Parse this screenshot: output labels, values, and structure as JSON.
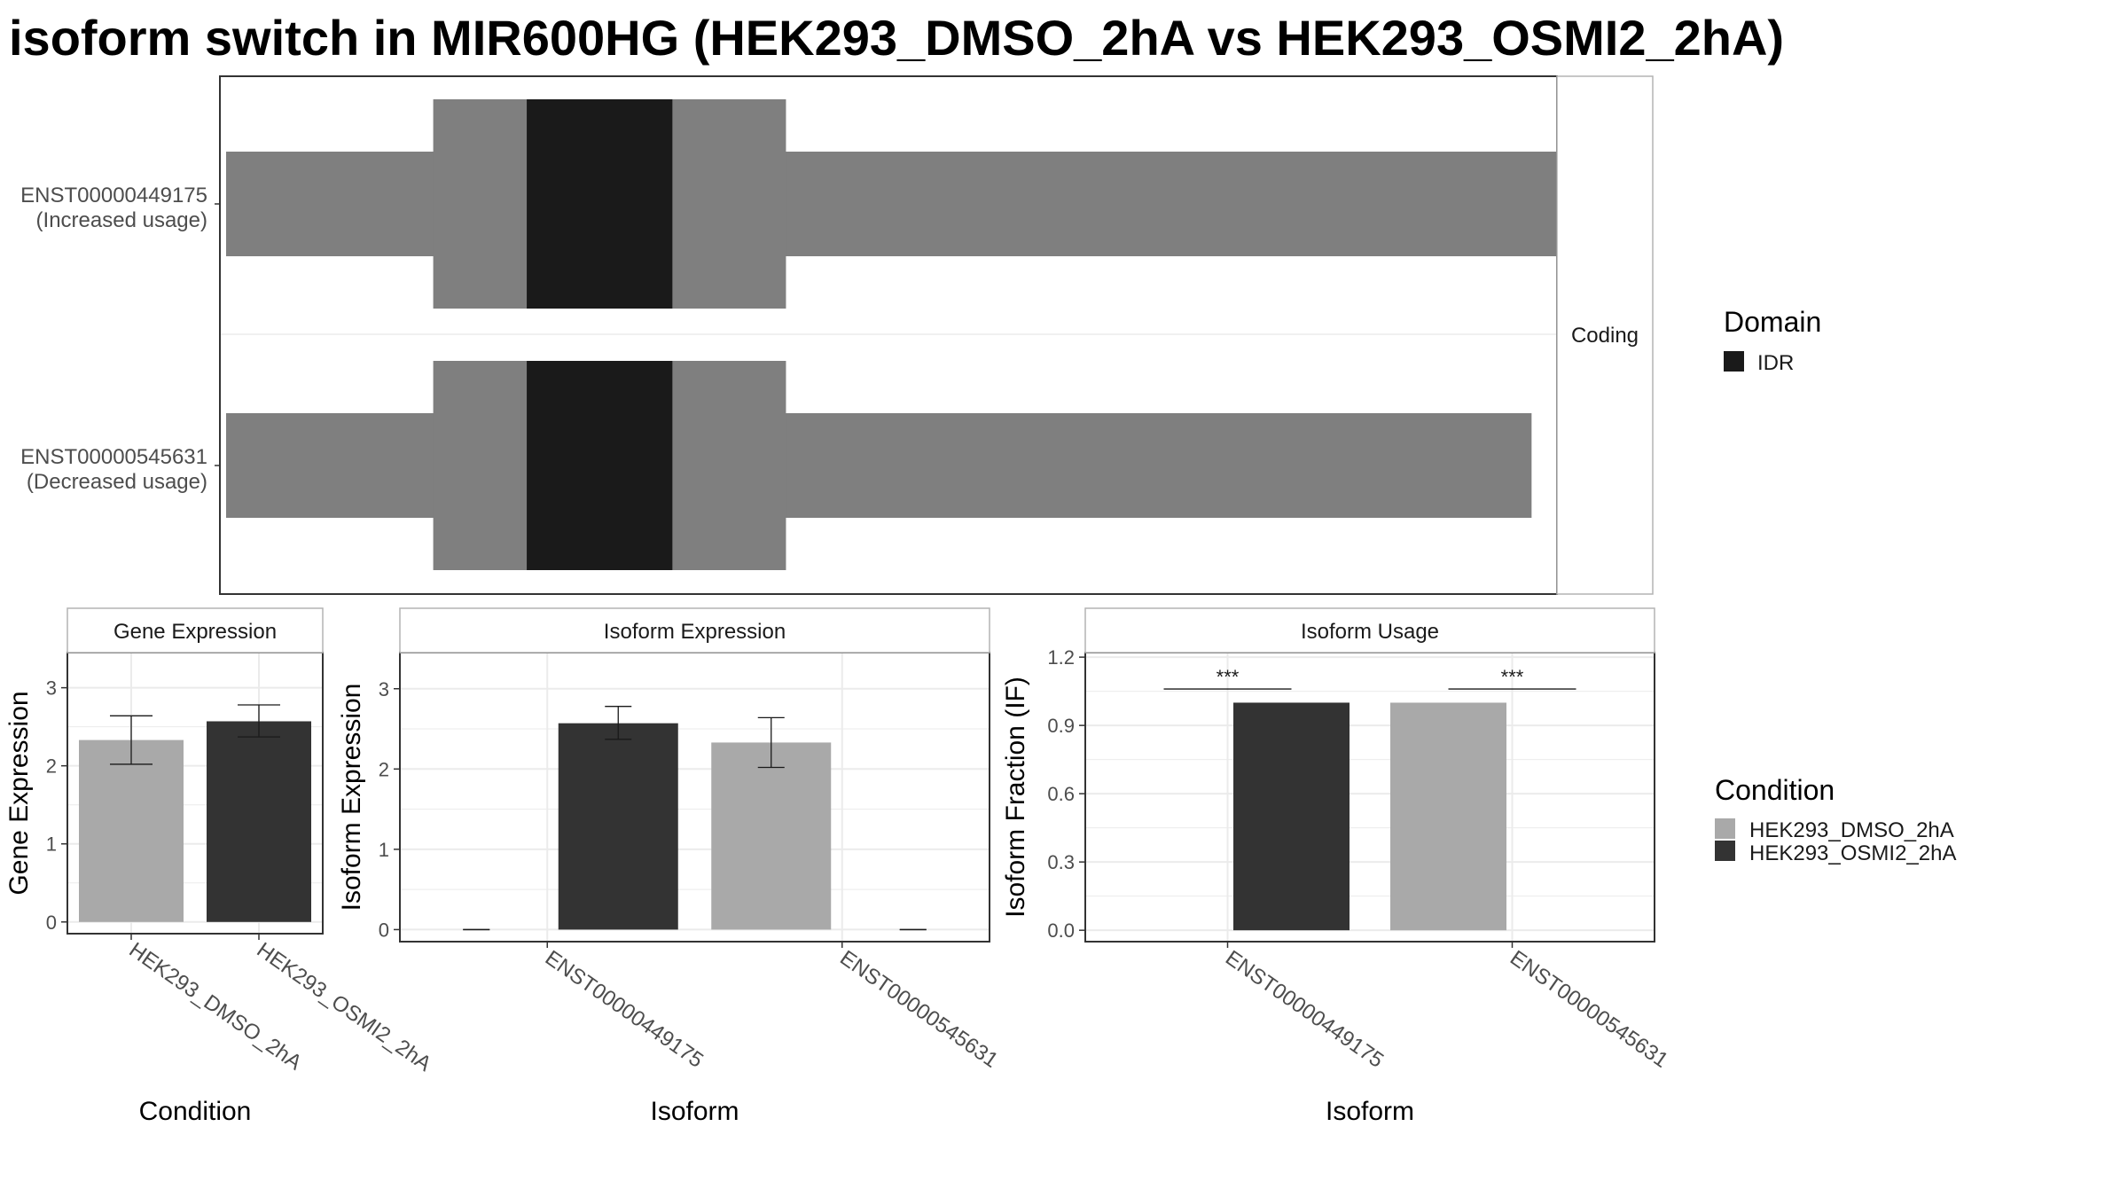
{
  "title": "isoform switch in MIR600HG (HEK293_DMSO_2hA vs HEK293_OSMI2_2hA)",
  "colors": {
    "exon": "#7f7f7f",
    "idr": "#1a1a1a",
    "dmso": "#a9a9a9",
    "osmi2": "#333333",
    "panel_border": "#333333",
    "strip_border": "#b3b3b3",
    "grid": "#ebebeb"
  },
  "legends": {
    "domain": {
      "title": "Domain",
      "items": [
        {
          "label": "IDR",
          "color": "#1a1a1a"
        }
      ]
    },
    "condition": {
      "title": "Condition",
      "items": [
        {
          "label": "HEK293_DMSO_2hA",
          "color": "#a9a9a9"
        },
        {
          "label": "HEK293_OSMI2_2hA",
          "color": "#333333"
        }
      ]
    }
  },
  "chart_data": [
    {
      "type": "gene-structure",
      "facet_label": "Coding",
      "isoforms": [
        {
          "id": "ENST00000449175",
          "status": "(Increased usage)",
          "exon": [
            0.0,
            1.0
          ],
          "cds": [
            0.155,
            0.419
          ],
          "domains": [
            {
              "name": "IDR",
              "range": [
                0.225,
                0.334
              ]
            }
          ]
        },
        {
          "id": "ENST00000545631",
          "status": "(Decreased usage)",
          "exon": [
            0.0,
            0.977
          ],
          "cds": [
            0.155,
            0.419
          ],
          "domains": [
            {
              "name": "IDR",
              "range": [
                0.225,
                0.334
              ]
            }
          ]
        }
      ]
    },
    {
      "type": "bar",
      "strip": "Gene Expression",
      "xlabel": "Condition",
      "ylabel": "Gene Expression",
      "ylim": [
        -0.15,
        3.45
      ],
      "yticks": [
        0,
        1,
        2,
        3
      ],
      "categories": [
        "HEK293_DMSO_2hA",
        "HEK293_OSMI2_2hA"
      ],
      "bars": [
        {
          "category": "HEK293_DMSO_2hA",
          "condition": "dmso",
          "value": 2.33,
          "err": [
            2.02,
            2.64
          ]
        },
        {
          "category": "HEK293_OSMI2_2hA",
          "condition": "osmi2",
          "value": 2.57,
          "err": [
            2.37,
            2.78
          ]
        }
      ]
    },
    {
      "type": "bar",
      "strip": "Isoform Expression",
      "xlabel": "Isoform",
      "ylabel": "Isoform Expression",
      "ylim": [
        -0.15,
        3.45
      ],
      "yticks": [
        0,
        1,
        2,
        3
      ],
      "categories": [
        "ENST00000449175",
        "ENST00000545631"
      ],
      "bars": [
        {
          "category": "ENST00000449175",
          "condition": "dmso",
          "value": 0.0,
          "err": [
            0.0,
            0.0
          ]
        },
        {
          "category": "ENST00000449175",
          "condition": "osmi2",
          "value": 2.57,
          "err": [
            2.37,
            2.78
          ]
        },
        {
          "category": "ENST00000545631",
          "condition": "dmso",
          "value": 2.33,
          "err": [
            2.02,
            2.64
          ]
        },
        {
          "category": "ENST00000545631",
          "condition": "osmi2",
          "value": 0.0,
          "err": [
            0.0,
            0.0
          ]
        }
      ]
    },
    {
      "type": "bar",
      "strip": "Isoform Usage",
      "xlabel": "Isoform",
      "ylabel": "Isoform Fraction (IF)",
      "ylim": [
        -0.05,
        1.22
      ],
      "yticks": [
        "0.0",
        "0.3",
        "0.6",
        "0.9",
        "1.2"
      ],
      "categories": [
        "ENST00000449175",
        "ENST00000545631"
      ],
      "bars": [
        {
          "category": "ENST00000449175",
          "condition": "dmso",
          "value": 0.0
        },
        {
          "category": "ENST00000449175",
          "condition": "osmi2",
          "value": 1.0
        },
        {
          "category": "ENST00000545631",
          "condition": "dmso",
          "value": 1.0
        },
        {
          "category": "ENST00000545631",
          "condition": "osmi2",
          "value": 0.0
        }
      ],
      "significance": [
        {
          "category": "ENST00000449175",
          "label": "***",
          "y": 1.06
        },
        {
          "category": "ENST00000545631",
          "label": "***",
          "y": 1.06
        }
      ]
    }
  ]
}
